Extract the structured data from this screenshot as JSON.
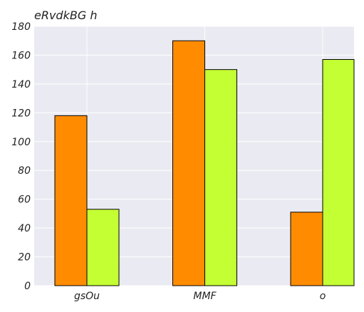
{
  "chart_data": {
    "type": "bar",
    "title": "eRvdkBG h",
    "xlabel": "",
    "ylabel": "",
    "categories": [
      "gsOu",
      "MMF",
      "o"
    ],
    "series": [
      {
        "values": [
          118,
          170,
          51
        ],
        "color": "#ff8c00"
      },
      {
        "values": [
          53,
          150,
          157
        ],
        "color": "#c4ff33"
      }
    ],
    "ylim": [
      0,
      180
    ],
    "yticks": [
      0,
      20,
      40,
      60,
      80,
      100,
      120,
      140,
      160,
      180
    ],
    "grid": true,
    "background_color": "#eaeaf2",
    "grid_color": "#ffffff",
    "legend": "none"
  }
}
